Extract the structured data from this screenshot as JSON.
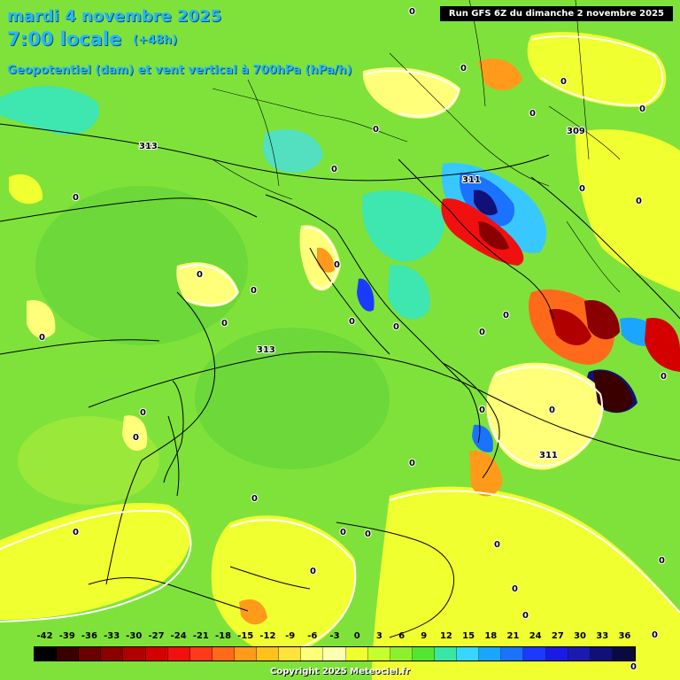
{
  "title": {
    "date": "mardi 4 novembre 2025",
    "time": "7:00 locale",
    "lead": "(+48h)",
    "parameter": "Geopotentiel (dam) et vent vertical à 700hPa (hPa/h)",
    "run": "Run GFS 6Z du dimanche 2 novembre 2025"
  },
  "copyright": "Copyright 2025 Meteociel.fr",
  "legend": {
    "ticks": [
      "-42",
      "-39",
      "-36",
      "-33",
      "-30",
      "-27",
      "-24",
      "-21",
      "-18",
      "-15",
      "-12",
      "-9",
      "-6",
      "-3",
      "0",
      "3",
      "6",
      "9",
      "12",
      "15",
      "18",
      "21",
      "24",
      "27",
      "30",
      "33",
      "36"
    ],
    "colors": [
      "#000000",
      "#3a0000",
      "#6a0000",
      "#8a0000",
      "#b00000",
      "#d40000",
      "#f01010",
      "#ff3a1a",
      "#ff6a1a",
      "#ff9a1a",
      "#ffc21a",
      "#ffe23a",
      "#ffff7a",
      "#ffffb0",
      "#f0ff30",
      "#c6ff30",
      "#8cf030",
      "#52e630",
      "#38e6a6",
      "#38d6ff",
      "#1aa6ff",
      "#1a72ff",
      "#1a3aff",
      "#1a1ae6",
      "#1a1ab0",
      "#101078",
      "#0a0a40"
    ]
  },
  "map": {
    "geopotential_labels": [
      "313",
      "313",
      "311",
      "311",
      "309"
    ],
    "zero_labels": [
      "0",
      "0",
      "0",
      "0",
      "0",
      "0",
      "0",
      "0",
      "0",
      "0",
      "0",
      "0",
      "0",
      "0",
      "0",
      "0",
      "0",
      "0",
      "0",
      "0",
      "0",
      "0",
      "0",
      "0",
      "0",
      "0",
      "0",
      "0",
      "0",
      "0",
      "0",
      "0",
      "0",
      "0",
      "0",
      "0"
    ]
  }
}
